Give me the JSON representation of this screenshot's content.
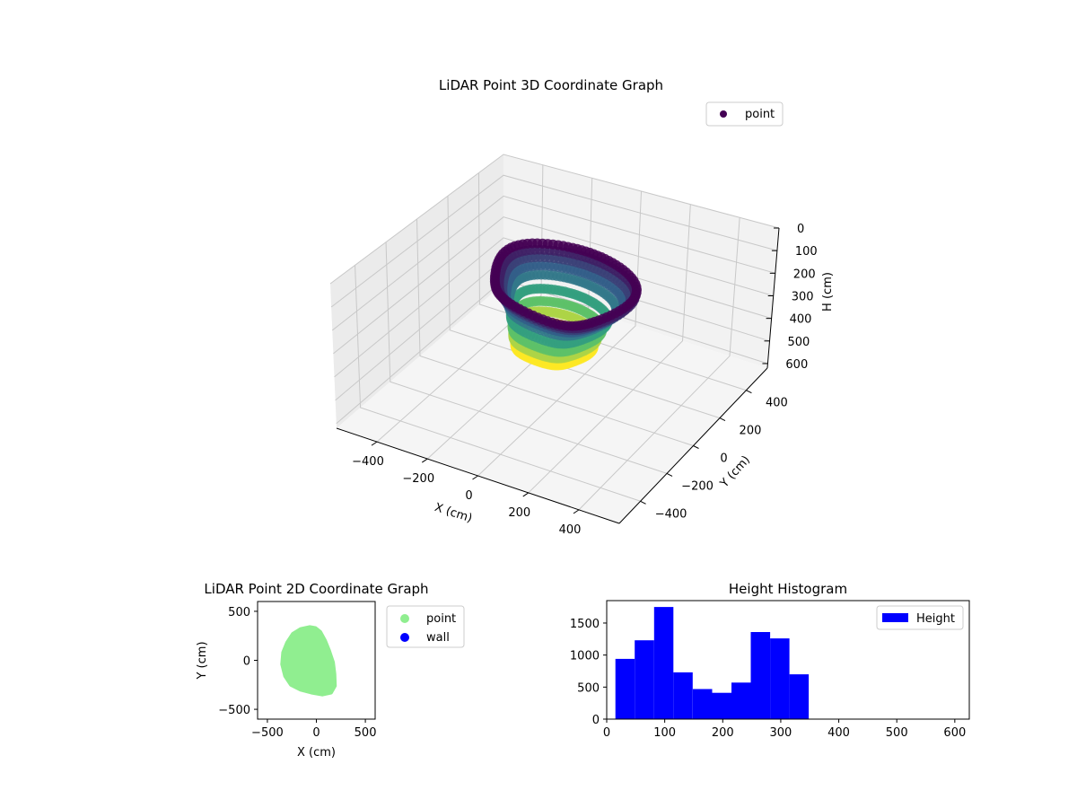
{
  "chart_data": [
    {
      "type": "scatter",
      "projection": "3d",
      "title": "LiDAR Point 3D Coordinate Graph",
      "xlabel": "X (cm)",
      "ylabel": "Y (cm)",
      "zlabel": "H (cm)",
      "xlim": [
        -560,
        560
      ],
      "ylim": [
        -560,
        560
      ],
      "zlim": [
        620,
        0
      ],
      "xticks": [
        "−400",
        "−200",
        "0",
        "200",
        "400"
      ],
      "yticks": [
        "−400",
        "−200",
        "0",
        "200",
        "400"
      ],
      "zticks": [
        "0",
        "100",
        "200",
        "300",
        "400",
        "500",
        "600"
      ],
      "grid": true,
      "legend": "upper-right",
      "colormap": [
        "#440154",
        "#31688e",
        "#35b779",
        "#fde725"
      ],
      "series": [
        {
          "name": "point",
          "color": "#440154",
          "rings": [
            {
              "h": 30,
              "rx": 270,
              "ry": 240,
              "cx": 20,
              "cy": 0
            },
            {
              "h": 60,
              "rx": 260,
              "ry": 230,
              "cx": 20,
              "cy": 10
            },
            {
              "h": 90,
              "rx": 245,
              "ry": 215,
              "cx": 15,
              "cy": 15
            },
            {
              "h": 120,
              "rx": 225,
              "ry": 200,
              "cx": 10,
              "cy": 15
            },
            {
              "h": 150,
              "rx": 205,
              "ry": 185,
              "cx": 5,
              "cy": 10
            },
            {
              "h": 200,
              "rx": 185,
              "ry": 170,
              "cx": 0,
              "cy": 0
            },
            {
              "h": 250,
              "rx": 170,
              "ry": 160,
              "cx": -5,
              "cy": -5
            },
            {
              "h": 290,
              "rx": 160,
              "ry": 150,
              "cx": -10,
              "cy": -10
            },
            {
              "h": 330,
              "rx": 150,
              "ry": 140,
              "cx": -10,
              "cy": -15
            }
          ]
        }
      ]
    },
    {
      "type": "scatter",
      "title": "LiDAR Point 2D Coordinate Graph",
      "xlabel": "X (cm)",
      "ylabel": "Y (cm)",
      "xlim": [
        -600,
        600
      ],
      "ylim": [
        -600,
        600
      ],
      "xticks": [
        "−500",
        "0",
        "500"
      ],
      "yticks": [
        "−500",
        "0",
        "500"
      ],
      "legend": "outside-upper-right",
      "series": [
        {
          "name": "point",
          "color": "#90ee90",
          "outline": [
            [
              -70,
              340
            ],
            [
              -10,
              330
            ],
            [
              40,
              290
            ],
            [
              90,
              200
            ],
            [
              130,
              100
            ],
            [
              170,
              -20
            ],
            [
              185,
              -140
            ],
            [
              190,
              -260
            ],
            [
              150,
              -330
            ],
            [
              60,
              -350
            ],
            [
              -50,
              -330
            ],
            [
              -160,
              -300
            ],
            [
              -260,
              -250
            ],
            [
              -320,
              -160
            ],
            [
              -350,
              -40
            ],
            [
              -340,
              80
            ],
            [
              -300,
              180
            ],
            [
              -240,
              270
            ],
            [
              -160,
              320
            ]
          ]
        },
        {
          "name": "wall",
          "color": "#0000ff",
          "points": []
        }
      ]
    },
    {
      "type": "histogram",
      "title": "Height Histogram",
      "xlim": [
        0,
        625
      ],
      "ylim": [
        0,
        1850
      ],
      "xticks": [
        0,
        100,
        200,
        300,
        400,
        500,
        600
      ],
      "yticks": [
        0,
        500,
        1000,
        1500
      ],
      "legend": "upper-right",
      "series": [
        {
          "name": "Height",
          "color": "#0000ff",
          "bin_edges": [
            15,
            48.3,
            81.7,
            115,
            148.3,
            181.7,
            215,
            248.3,
            281.7,
            315,
            348.3
          ],
          "counts": [
            940,
            1230,
            1750,
            730,
            470,
            410,
            570,
            1360,
            1260,
            700
          ]
        }
      ]
    }
  ]
}
